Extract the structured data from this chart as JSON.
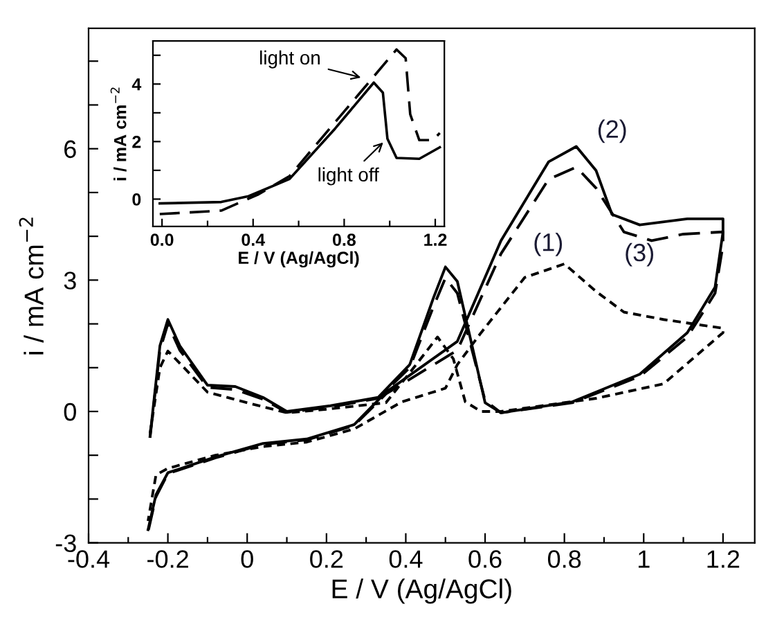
{
  "chart_data": [
    {
      "type": "line",
      "xlabel": "E / V (Ag/AgCl)",
      "ylabel": "i / mA cm$^{−2}$",
      "xlim": [
        -0.4,
        1.28
      ],
      "ylim": [
        -3,
        8.75
      ],
      "xticks": [
        -0.4,
        {
          "value": -0.3,
          "label": null
        },
        -0.2,
        {
          "value": -0.1,
          "label": null
        },
        0,
        {
          "value": 0.1,
          "label": null
        },
        0.2,
        {
          "value": 0.3,
          "label": null
        },
        0.4,
        {
          "value": 0.5,
          "label": null
        },
        0.6,
        {
          "value": 0.7,
          "label": null
        },
        0.8,
        {
          "value": 0.9,
          "label": null
        },
        1,
        {
          "value": 1.1,
          "label": null
        },
        1.2
      ],
      "yticks": [
        -3,
        {
          "value": -2,
          "label": null
        },
        {
          "value": -1,
          "label": null
        },
        0,
        {
          "value": 1,
          "label": null
        },
        {
          "value": 2,
          "label": null
        },
        3,
        {
          "value": 4,
          "label": null
        },
        {
          "value": 5,
          "label": null
        },
        6,
        {
          "value": 7,
          "label": null
        },
        {
          "value": 8,
          "label": null
        }
      ],
      "grid": false,
      "legend": false,
      "series": [
        {
          "color": "#000000",
          "line_style": "dotted",
          "x": [
            -0.245,
            -0.22,
            -0.2,
            -0.17,
            -0.1,
            0.0,
            0.1,
            0.2,
            0.35,
            0.42,
            0.48,
            0.52,
            0.55,
            0.59,
            0.64,
            0.88,
            1.05,
            1.2,
            1.2,
            1.05,
            0.95,
            0.88,
            0.8,
            0.7,
            0.59,
            0.53,
            0.5,
            0.39,
            0.27,
            0.15,
            0.04,
            -0.08,
            -0.2,
            -0.23,
            -0.25
          ],
          "values": [
            -0.5,
            1.0,
            1.38,
            1.1,
            0.44,
            0.2,
            -0.03,
            0.05,
            0.2,
            1.0,
            1.7,
            1.2,
            0.22,
            0.0,
            0.0,
            0.3,
            0.63,
            1.8,
            1.9,
            2.1,
            2.27,
            2.74,
            3.37,
            3.06,
            1.8,
            1.07,
            0.53,
            0.22,
            -0.4,
            -0.7,
            -0.8,
            -1.0,
            -1.3,
            -1.45,
            -2.5
          ]
        },
        {
          "color": "#000000",
          "line_style": "solid",
          "x": [
            -0.245,
            -0.22,
            -0.2,
            -0.17,
            -0.1,
            -0.03,
            0.04,
            0.1,
            0.21,
            0.33,
            0.41,
            0.47,
            0.5,
            0.53,
            0.6,
            0.64,
            0.82,
            0.99,
            1.11,
            1.18,
            1.2,
            1.2,
            1.11,
            0.99,
            0.92,
            0.88,
            0.83,
            0.76,
            0.64,
            0.53,
            0.35,
            0.27,
            0.15,
            0.04,
            -0.08,
            -0.2,
            -0.23,
            -0.25
          ],
          "values": [
            -0.57,
            1.5,
            2.1,
            1.5,
            0.6,
            0.57,
            0.32,
            0.0,
            0.13,
            0.32,
            1.07,
            2.6,
            3.3,
            2.97,
            0.2,
            -0.03,
            0.22,
            0.85,
            1.8,
            2.84,
            4.1,
            4.4,
            4.4,
            4.26,
            4.5,
            5.5,
            6.05,
            5.7,
            3.9,
            1.6,
            0.44,
            -0.3,
            -0.63,
            -0.73,
            -1.04,
            -1.4,
            -1.9,
            -2.7
          ]
        },
        {
          "color": "#000000",
          "line_style": "dashed",
          "x": [
            -0.245,
            -0.22,
            -0.2,
            -0.17,
            -0.1,
            -0.03,
            0.04,
            0.1,
            0.21,
            0.33,
            0.41,
            0.47,
            0.5,
            0.53,
            0.6,
            0.64,
            0.82,
            0.99,
            1.11,
            1.18,
            1.2,
            1.2,
            1.1,
            1.02,
            0.95,
            0.88,
            0.83,
            0.76,
            0.64,
            0.53,
            0.35,
            0.27,
            0.15,
            0.04,
            -0.08,
            -0.2,
            -0.23,
            -0.25
          ],
          "values": [
            -0.6,
            1.4,
            2.0,
            1.4,
            0.55,
            0.5,
            0.28,
            -0.02,
            0.1,
            0.3,
            1.0,
            2.4,
            3.05,
            2.7,
            0.25,
            -0.03,
            0.2,
            0.8,
            1.7,
            2.7,
            3.8,
            4.1,
            4.05,
            3.9,
            4.1,
            5.1,
            5.58,
            5.3,
            3.6,
            1.4,
            0.4,
            -0.32,
            -0.65,
            -0.75,
            -1.06,
            -1.42,
            -1.95,
            -2.75
          ]
        }
      ],
      "annotations": [
        "(1)",
        "(2)",
        "(3)"
      ]
    },
    {
      "type": "line",
      "xlabel": "E / V (Ag/AgCl)",
      "ylabel": "i / mA cm$^{−2}$",
      "xlim": [
        -0.04,
        1.24
      ],
      "ylim": [
        -0.95,
        5.5
      ],
      "xticks": [
        {
          "value": 0,
          "label": "0.0"
        },
        {
          "value": 0.2,
          "label": null
        },
        0.4,
        {
          "value": 0.6,
          "label": null
        },
        0.8,
        {
          "value": 1.0,
          "label": null
        },
        1.2
      ],
      "yticks": [
        0,
        {
          "value": 1,
          "label": null
        },
        2,
        {
          "value": 3,
          "label": null
        },
        4,
        {
          "value": 5,
          "label": null
        }
      ],
      "grid": false,
      "legend": false,
      "series": [
        {
          "color": "#000000",
          "line_style": "solid",
          "x": [
            -0.01,
            0.26,
            0.38,
            0.56,
            0.76,
            0.93,
            0.97,
            0.99,
            1.03,
            1.13,
            1.22
          ],
          "values": [
            -0.15,
            -0.1,
            0.1,
            0.7,
            2.45,
            4.05,
            3.7,
            2.1,
            1.43,
            1.4,
            1.8
          ]
        },
        {
          "color": "#000000",
          "line_style": "dashed",
          "x": [
            -0.01,
            0.26,
            0.42,
            0.56,
            0.87,
            1.03,
            1.07,
            1.09,
            1.13,
            1.19,
            1.22
          ],
          "values": [
            -0.52,
            -0.4,
            0.15,
            0.8,
            3.7,
            5.2,
            4.9,
            2.95,
            2.05,
            2.05,
            2.3
          ]
        }
      ],
      "annotations": [
        "light on",
        "light off"
      ]
    }
  ]
}
